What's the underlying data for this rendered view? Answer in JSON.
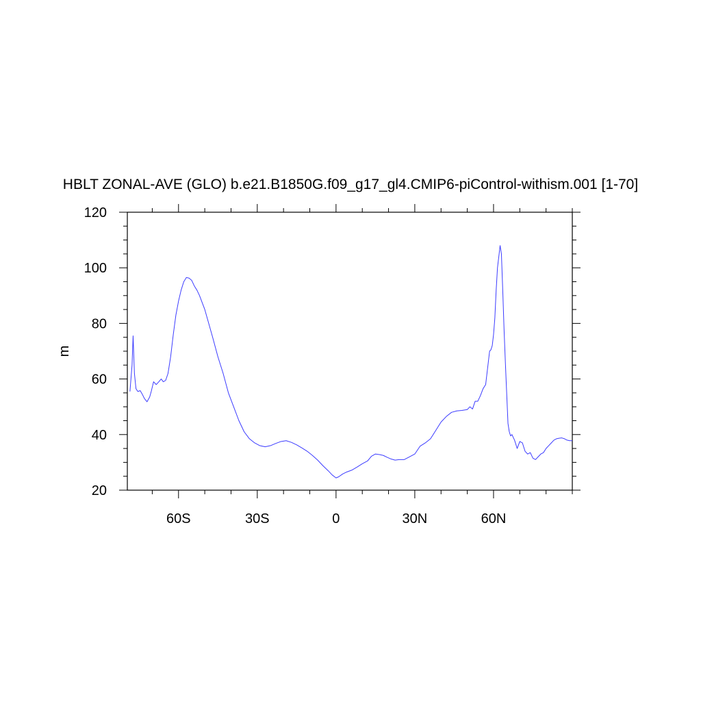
{
  "chart_data": {
    "type": "line",
    "title": "HBLT ZONAL-AVE (GLO) b.e21.B1850G.f09_g17_gl4.CMIP6-piControl-withism.001 [1-70]",
    "xlabel": "",
    "ylabel": "m",
    "xlim": [
      -79.5,
      90
    ],
    "ylim": [
      20,
      120
    ],
    "x_ticks": [
      -60,
      -30,
      0,
      30,
      60
    ],
    "x_tick_labels": [
      "60S",
      "30S",
      "0",
      "30N",
      "60N"
    ],
    "y_ticks": [
      20,
      40,
      60,
      80,
      100,
      120
    ],
    "y_tick_labels": [
      "20",
      "40",
      "60",
      "80",
      "100",
      "120"
    ],
    "grid": false,
    "series": [
      {
        "color": "#3b3bff",
        "x": [
          -78.5,
          -77.7,
          -77.3,
          -76.8,
          -76.2,
          -75.5,
          -74.6,
          -73.8,
          -73.0,
          -72.0,
          -71.0,
          -70.4,
          -69.5,
          -68.5,
          -67.5,
          -66.6,
          -65.8,
          -64.9,
          -64.0,
          -63.0,
          -62.0,
          -61.0,
          -60.0,
          -59.0,
          -58.0,
          -57.0,
          -56.0,
          -55.0,
          -54.0,
          -53.0,
          -52.0,
          -51.0,
          -50.0,
          -48.5,
          -47.0,
          -45.0,
          -43.0,
          -41.0,
          -39.0,
          -37.0,
          -35.0,
          -33.0,
          -31.0,
          -29.0,
          -27.0,
          -25.0,
          -23.0,
          -21.0,
          -19.0,
          -17.0,
          -15.0,
          -13.0,
          -11.0,
          -9.0,
          -7.0,
          -5.0,
          -3.0,
          -1.5,
          0.0,
          1.0,
          2.5,
          4.0,
          6.0,
          8.0,
          10.0,
          12.0,
          13.5,
          15.0,
          16.5,
          18.0,
          19.5,
          21.0,
          22.5,
          24.0,
          26.0,
          28.0,
          30.0,
          32.0,
          34.0,
          36.0,
          38.0,
          40.0,
          42.0,
          44.0,
          46.0,
          48.0,
          50.0,
          51.0,
          52.0,
          53.0,
          54.0,
          55.0,
          56.0,
          57.0,
          57.5,
          58.0,
          58.5,
          59.0,
          59.5,
          60.0,
          60.5,
          61.0,
          61.5,
          62.0,
          62.5,
          63.0,
          63.5,
          64.0,
          64.5,
          65.0,
          65.5,
          66.0,
          66.5,
          67.0,
          68.0,
          69.0,
          70.0,
          71.0,
          72.0,
          73.0,
          74.0,
          75.0,
          76.0,
          77.0,
          78.0,
          79.0,
          80.0,
          81.0,
          82.0,
          83.0,
          84.0,
          85.0,
          86.0,
          87.0,
          88.0,
          89.0,
          90.0
        ],
        "values": [
          55.5,
          65.0,
          75.5,
          62.0,
          56.5,
          55.5,
          55.8,
          54.5,
          53.0,
          51.8,
          53.5,
          55.5,
          59.0,
          58.0,
          59.0,
          60.0,
          59.0,
          59.5,
          62.0,
          68.0,
          76.0,
          83.0,
          88.0,
          92.0,
          95.0,
          96.5,
          96.3,
          95.5,
          93.5,
          92.0,
          90.0,
          87.5,
          85.0,
          80.0,
          75.0,
          68.0,
          62.0,
          55.0,
          50.0,
          45.0,
          41.0,
          38.5,
          37.0,
          36.0,
          35.6,
          36.0,
          36.8,
          37.5,
          37.8,
          37.2,
          36.3,
          35.2,
          34.0,
          32.5,
          30.8,
          28.8,
          27.0,
          25.5,
          24.4,
          24.8,
          25.8,
          26.5,
          27.2,
          28.3,
          29.5,
          30.5,
          32.2,
          33.0,
          32.8,
          32.5,
          31.8,
          31.2,
          30.8,
          31.0,
          31.0,
          32.0,
          33.0,
          35.8,
          37.0,
          38.5,
          41.5,
          44.5,
          46.5,
          48.0,
          48.5,
          48.7,
          49.0,
          50.0,
          49.2,
          52.0,
          52.0,
          54.0,
          56.5,
          58.0,
          62.0,
          66.0,
          70.0,
          70.5,
          72.0,
          76.0,
          82.0,
          92.0,
          100.0,
          104.0,
          108.0,
          105.0,
          92.0,
          78.0,
          66.0,
          55.0,
          44.0,
          41.0,
          39.5,
          40.0,
          38.0,
          35.0,
          37.5,
          37.0,
          34.0,
          33.0,
          33.5,
          31.5,
          31.0,
          32.0,
          33.0,
          33.5,
          35.0,
          36.0,
          37.0,
          38.0,
          38.5,
          38.7,
          38.8,
          38.5,
          38.0,
          37.8,
          37.8
        ]
      }
    ]
  }
}
